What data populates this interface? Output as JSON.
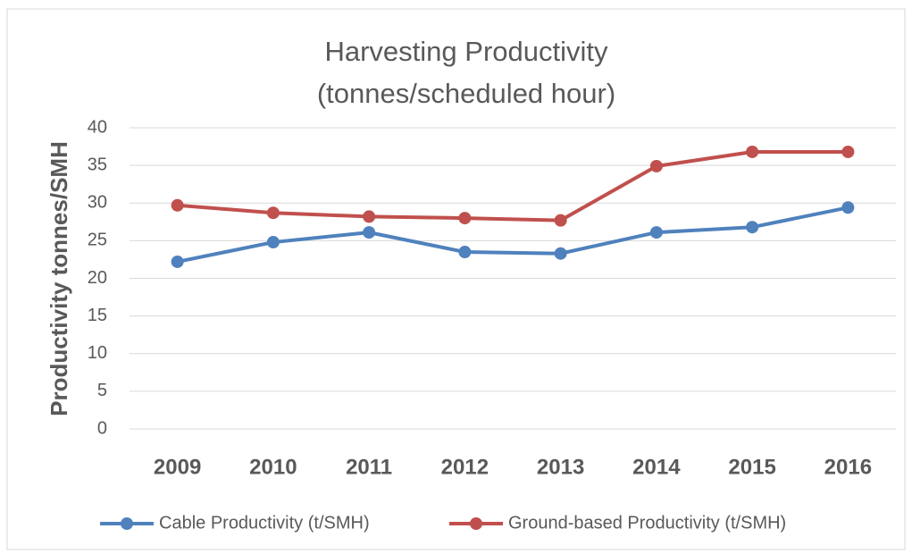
{
  "chart_data": {
    "type": "line",
    "title": [
      "Harvesting Productivity",
      "(tonnes/scheduled hour)"
    ],
    "y_label": "Productivity tonnes/SMH",
    "categories": [
      "2009",
      "2010",
      "2011",
      "2012",
      "2013",
      "2014",
      "2015",
      "2016"
    ],
    "series": [
      {
        "name": "Cable Productivity (t/SMH)",
        "color": "#4f81bd",
        "values": [
          22.2,
          24.8,
          26.1,
          23.5,
          23.3,
          26.1,
          26.8,
          29.4
        ]
      },
      {
        "name": "Ground-based Productivity (t/SMH)",
        "color": "#c0504d",
        "values": [
          29.7,
          28.7,
          28.2,
          28.0,
          27.7,
          34.9,
          36.8,
          36.8
        ]
      }
    ],
    "ylim": [
      0,
      40
    ],
    "yticks": [
      0,
      5,
      10,
      15,
      20,
      25,
      30,
      35,
      40
    ],
    "grid": true,
    "legend": "bottom"
  }
}
